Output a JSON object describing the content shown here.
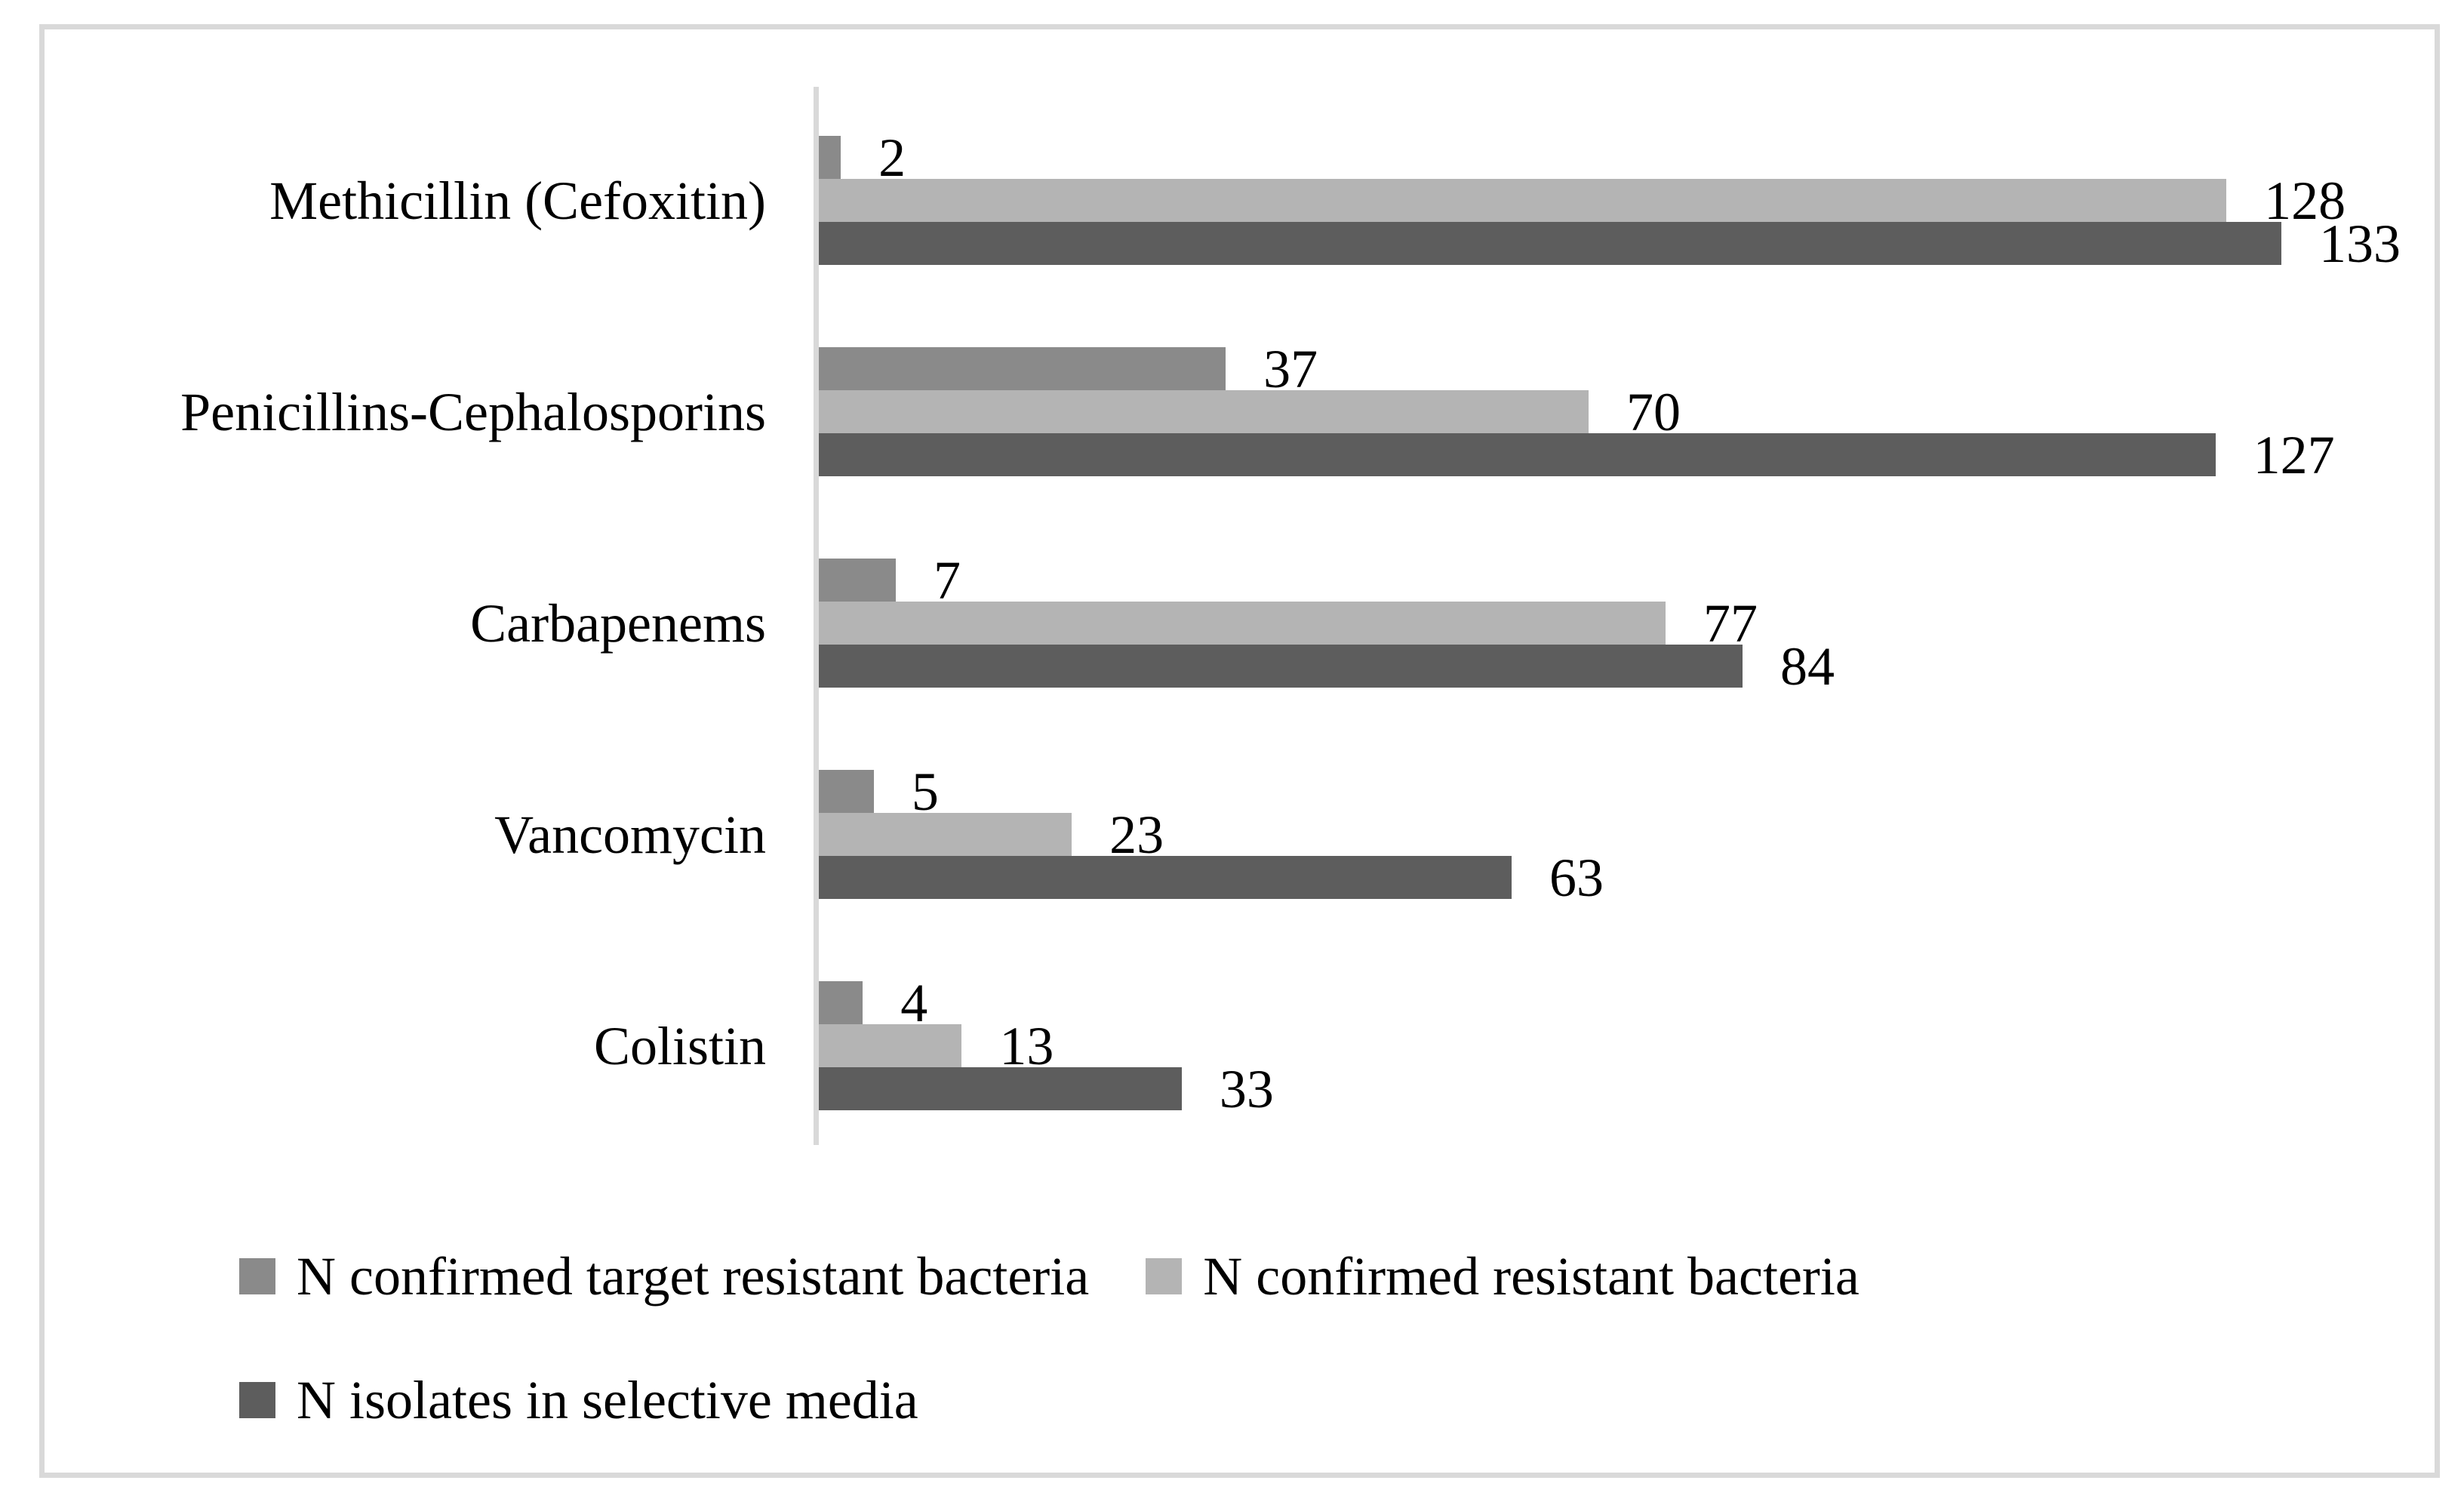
{
  "figure": {
    "background": "#ffffff",
    "frame_border_color": "#d9d9d9",
    "axis_line_color": "#d9d9d9",
    "text_color": "#000000"
  },
  "chart_data": {
    "type": "bar",
    "orientation": "horizontal",
    "title": "",
    "xlabel": "",
    "ylabel": "",
    "grid": false,
    "xlim": [
      0,
      140
    ],
    "data_labels": true,
    "legend_position": "bottom-left",
    "categories": [
      "Methicillin (Cefoxitin)",
      "Penicillins-Cephalosporins",
      "Carbapenems",
      "Vancomycin",
      "Colistin"
    ],
    "series": [
      {
        "name": "N confirmed target resistant bacteria",
        "color": "#8a8a8a",
        "values": [
          2,
          37,
          7,
          5,
          4
        ]
      },
      {
        "name": "N confirmed resistant bacteria",
        "color": "#b4b4b4",
        "values": [
          128,
          70,
          77,
          23,
          13
        ]
      },
      {
        "name": "N isolates in selective media",
        "color": "#5d5d5d",
        "values": [
          133,
          127,
          84,
          63,
          33
        ]
      }
    ]
  }
}
